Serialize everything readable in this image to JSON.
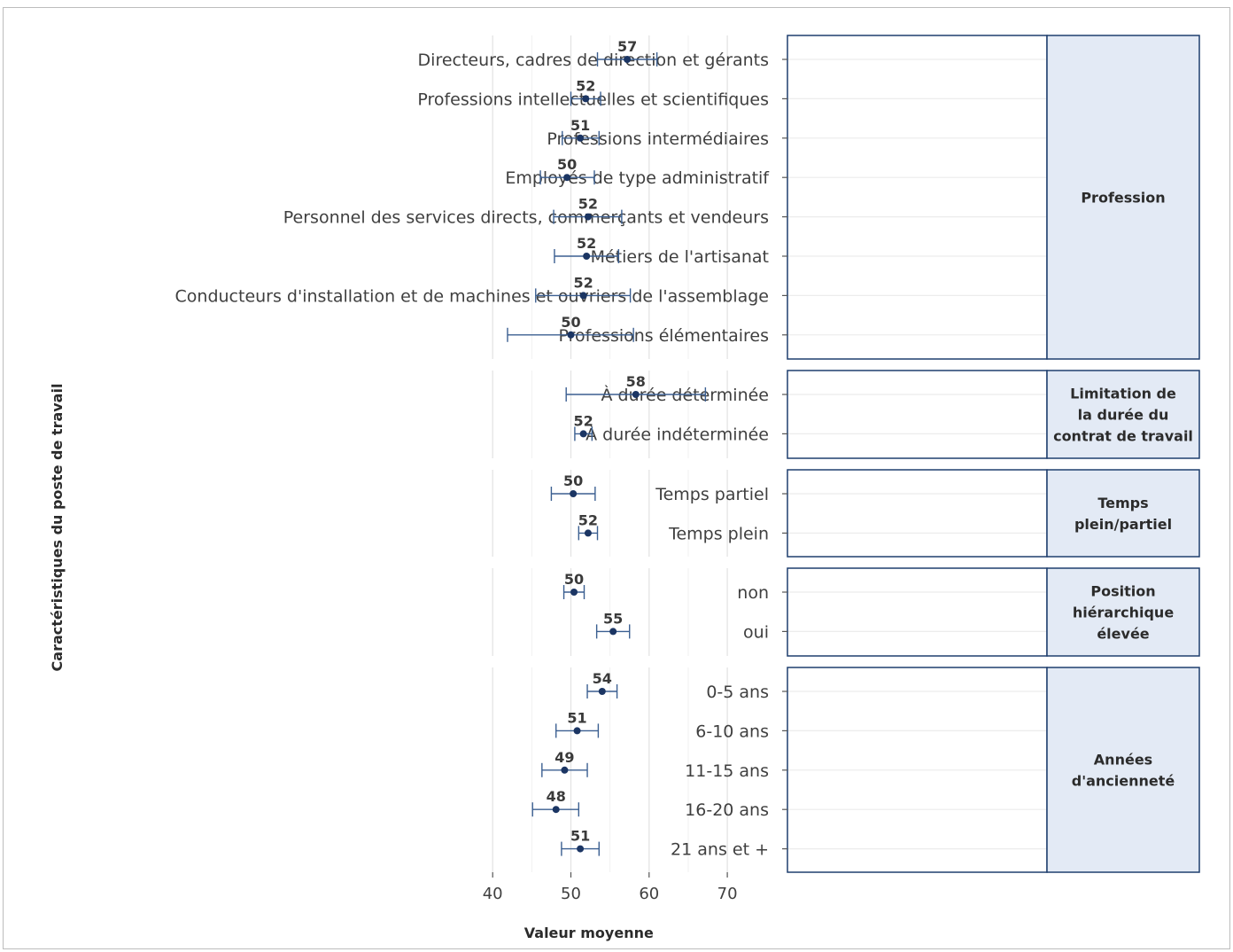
{
  "chart_data": {
    "type": "errorbar",
    "xlabel": "Valeur moyenne",
    "ylabel": "Caractéristiques du poste de travail",
    "xlim": [
      38.5,
      71.5
    ],
    "xticks": [
      40,
      50,
      60,
      70
    ],
    "grid": true,
    "colors": {
      "point": "#1b3563",
      "bar": "#3b5f91",
      "border": "#1f3f6e",
      "strip": "#e3eaf5"
    },
    "facets": [
      {
        "name": "Profession",
        "items": [
          {
            "label": "Directeurs, cadres de direction et gérants",
            "mean": 57.2,
            "low": 53.4,
            "high": 61.0,
            "value_label": "57"
          },
          {
            "label": "Professions intellectuelles et scientifiques",
            "mean": 51.9,
            "low": 50.0,
            "high": 53.8,
            "value_label": "52"
          },
          {
            "label": "Professions intermédiaires",
            "mean": 51.2,
            "low": 48.9,
            "high": 53.6,
            "value_label": "51"
          },
          {
            "label": "Employés de type administratif",
            "mean": 49.5,
            "low": 46.1,
            "high": 53.0,
            "value_label": "50"
          },
          {
            "label": "Personnel des services directs, commerçants et vendeurs",
            "mean": 52.2,
            "low": 47.8,
            "high": 56.5,
            "value_label": "52"
          },
          {
            "label": "Métiers de l'artisanat",
            "mean": 52.0,
            "low": 47.9,
            "high": 56.1,
            "value_label": "52"
          },
          {
            "label": "Conducteurs d'installation et de machines et ouvriers de l'assemblage",
            "mean": 51.6,
            "low": 45.5,
            "high": 57.6,
            "value_label": "52"
          },
          {
            "label": "Professions élémentaires",
            "mean": 50.0,
            "low": 41.9,
            "high": 58.0,
            "value_label": "50"
          }
        ]
      },
      {
        "name": "Limitation de la durée du contrat de travail",
        "items": [
          {
            "label": "À durée déterminée",
            "mean": 58.3,
            "low": 49.4,
            "high": 67.2,
            "value_label": "58"
          },
          {
            "label": "À durée indéterminée",
            "mean": 51.6,
            "low": 50.5,
            "high": 52.7,
            "value_label": "52"
          }
        ]
      },
      {
        "name": "Temps plein/partiel",
        "items": [
          {
            "label": "Temps partiel",
            "mean": 50.3,
            "low": 47.5,
            "high": 53.1,
            "value_label": "50"
          },
          {
            "label": "Temps plein",
            "mean": 52.2,
            "low": 51.0,
            "high": 53.4,
            "value_label": "52"
          }
        ]
      },
      {
        "name": "Position hiérarchique élevée",
        "items": [
          {
            "label": "non",
            "mean": 50.4,
            "low": 49.1,
            "high": 51.7,
            "value_label": "50"
          },
          {
            "label": "oui",
            "mean": 55.4,
            "low": 53.3,
            "high": 57.5,
            "value_label": "55"
          }
        ]
      },
      {
        "name": "Années d'ancienneté",
        "items": [
          {
            "label": "0-5 ans",
            "mean": 54.0,
            "low": 52.1,
            "high": 55.9,
            "value_label": "54"
          },
          {
            "label": "6-10 ans",
            "mean": 50.8,
            "low": 48.1,
            "high": 53.5,
            "value_label": "51"
          },
          {
            "label": "11-15 ans",
            "mean": 49.2,
            "low": 46.3,
            "high": 52.1,
            "value_label": "49"
          },
          {
            "label": "16-20 ans",
            "mean": 48.1,
            "low": 45.1,
            "high": 51.0,
            "value_label": "48"
          },
          {
            "label": "21 ans et +",
            "mean": 51.2,
            "low": 48.8,
            "high": 53.6,
            "value_label": "51"
          }
        ]
      }
    ]
  }
}
